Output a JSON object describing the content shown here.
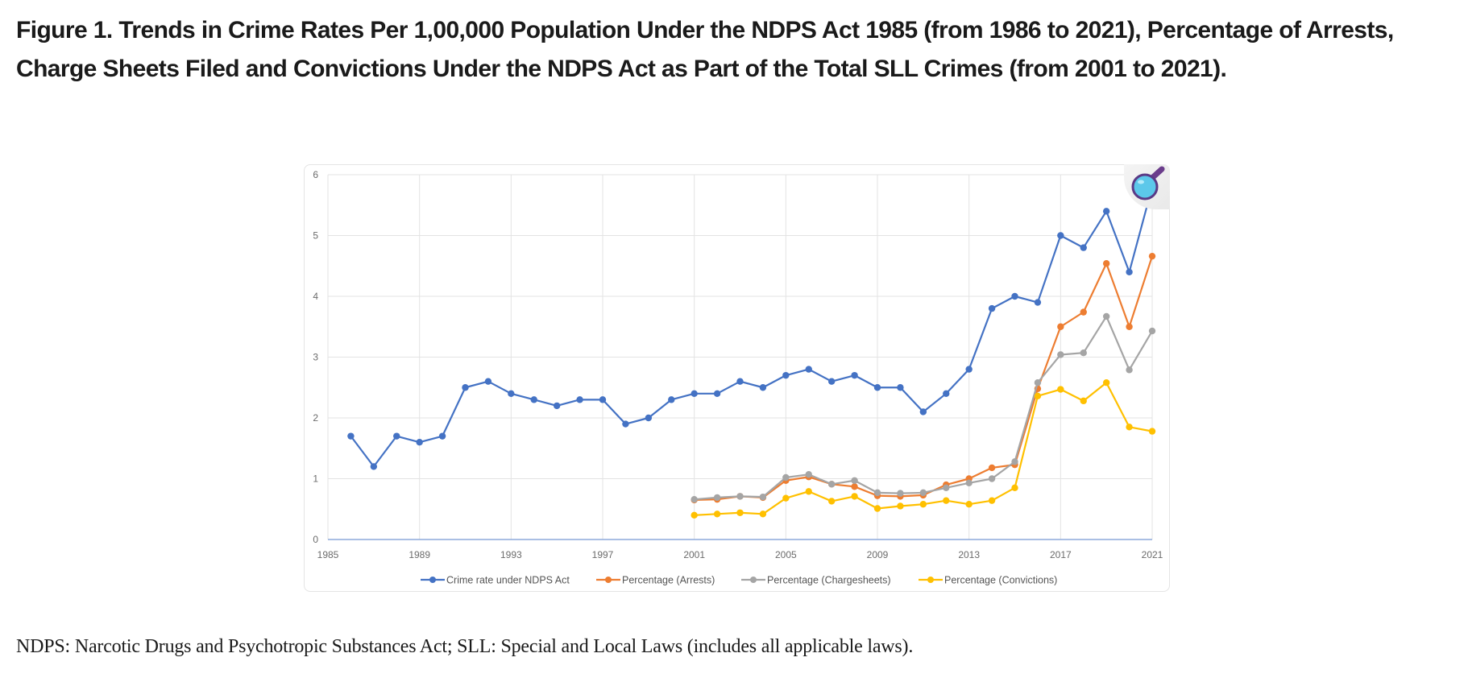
{
  "figure": {
    "title": "Figure 1. Trends in Crime Rates Per 1,00,000 Population Under the NDPS Act 1985 (from 1986 to 2021), Percentage of Arrests, Charge Sheets Filed and Convictions Under the NDPS Act as Part of the Total SLL Crimes (from 2001 to 2021).",
    "footnote": "NDPS: Narcotic Drugs and Psychotropic Substances Act; SLL: Special and Local Laws (includes all applicable laws).",
    "overlay_icon": "magnifier-icon"
  },
  "chart_data": {
    "type": "line",
    "title": "",
    "xlabel": "",
    "ylabel": "",
    "xlim": [
      1985,
      2021
    ],
    "ylim": [
      0,
      6
    ],
    "x_ticks": [
      1985,
      1989,
      1993,
      1997,
      2001,
      2005,
      2009,
      2013,
      2017,
      2021
    ],
    "y_ticks": [
      0,
      1,
      2,
      3,
      4,
      5,
      6
    ],
    "grid": true,
    "legend_position": "bottom",
    "series": [
      {
        "name": "Crime rate under NDPS Act",
        "color": "#4472C4",
        "x": [
          1986,
          1987,
          1988,
          1989,
          1990,
          1991,
          1992,
          1993,
          1994,
          1995,
          1996,
          1997,
          1998,
          1999,
          2000,
          2001,
          2002,
          2003,
          2004,
          2005,
          2006,
          2007,
          2008,
          2009,
          2010,
          2011,
          2012,
          2013,
          2014,
          2015,
          2016,
          2017,
          2018,
          2019,
          2020,
          2021
        ],
        "values": [
          1.7,
          1.2,
          1.7,
          1.6,
          1.7,
          2.5,
          2.6,
          2.4,
          2.3,
          2.2,
          2.3,
          2.3,
          1.9,
          2.0,
          2.3,
          2.4,
          2.4,
          2.6,
          2.5,
          2.7,
          2.8,
          2.6,
          2.7,
          2.5,
          2.5,
          2.1,
          2.4,
          2.8,
          3.8,
          4.0,
          3.9,
          5.0,
          4.8,
          5.4,
          4.4,
          5.8
        ]
      },
      {
        "name": "Percentage (Arrests)",
        "color": "#ED7D31",
        "x": [
          2001,
          2002,
          2003,
          2004,
          2005,
          2006,
          2007,
          2008,
          2009,
          2010,
          2011,
          2012,
          2013,
          2014,
          2015,
          2016,
          2017,
          2018,
          2019,
          2020,
          2021
        ],
        "values": [
          0.65,
          0.66,
          0.71,
          0.69,
          0.97,
          1.03,
          0.91,
          0.87,
          0.72,
          0.71,
          0.73,
          0.9,
          1.0,
          1.18,
          1.23,
          2.48,
          3.5,
          3.74,
          4.54,
          3.5,
          4.66
        ]
      },
      {
        "name": "Percentage (Chargesheets)",
        "color": "#A5A5A5",
        "x": [
          2001,
          2002,
          2003,
          2004,
          2005,
          2006,
          2007,
          2008,
          2009,
          2010,
          2011,
          2012,
          2013,
          2014,
          2015,
          2016,
          2017,
          2018,
          2019,
          2020,
          2021
        ],
        "values": [
          0.66,
          0.69,
          0.71,
          0.7,
          1.02,
          1.07,
          0.91,
          0.97,
          0.77,
          0.76,
          0.77,
          0.85,
          0.93,
          1.0,
          1.28,
          2.58,
          3.04,
          3.07,
          3.67,
          2.79,
          3.43
        ]
      },
      {
        "name": "Percentage (Convictions)",
        "color": "#FFC000",
        "x": [
          2001,
          2002,
          2003,
          2004,
          2005,
          2006,
          2007,
          2008,
          2009,
          2010,
          2011,
          2012,
          2013,
          2014,
          2015,
          2016,
          2017,
          2018,
          2019,
          2020,
          2021
        ],
        "values": [
          0.4,
          0.42,
          0.44,
          0.42,
          0.68,
          0.79,
          0.63,
          0.71,
          0.51,
          0.55,
          0.58,
          0.64,
          0.58,
          0.64,
          0.85,
          2.36,
          2.47,
          2.28,
          2.58,
          1.85,
          1.78
        ]
      }
    ]
  }
}
